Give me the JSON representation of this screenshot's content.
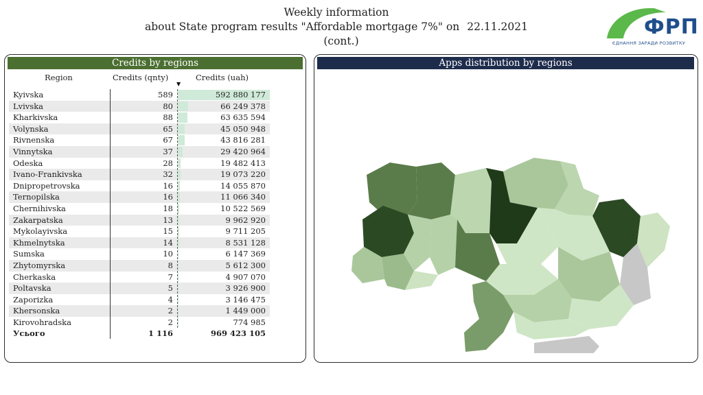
{
  "header": {
    "line1": "Weekly information",
    "line2": "about State program results \"Affordable mortgage 7%\" on",
    "date": "22.11.2021",
    "cont": "(cont.)"
  },
  "logo": {
    "text": "ФРП",
    "subtitle": "ЄДНАННЯ ЗАРАДИ РОЗВИТКУ"
  },
  "left": {
    "title": "Credits by regions",
    "columns": [
      "Region",
      "Credits (qnty)",
      "Credits (uah)"
    ],
    "rows": [
      {
        "region": "Kyivska",
        "qnty": "589",
        "uah": "592 880 177",
        "share": 1.0
      },
      {
        "region": "Lvivska",
        "qnty": "80",
        "uah": "66 249 378",
        "share": 0.112
      },
      {
        "region": "Kharkivska",
        "qnty": "88",
        "uah": "63 635 594",
        "share": 0.107
      },
      {
        "region": "Volynska",
        "qnty": "65",
        "uah": "45 050 948",
        "share": 0.076
      },
      {
        "region": "Rivnenska",
        "qnty": "67",
        "uah": "43 816 281",
        "share": 0.074
      },
      {
        "region": "Vinnytska",
        "qnty": "37",
        "uah": "29 420 964",
        "share": 0.05
      },
      {
        "region": "Odeska",
        "qnty": "28",
        "uah": "19 482 413",
        "share": 0.033
      },
      {
        "region": "Ivano-Frankivska",
        "qnty": "32",
        "uah": "19 073 220",
        "share": 0.032
      },
      {
        "region": "Dnipropetrovska",
        "qnty": "16",
        "uah": "14 055 870",
        "share": 0.024
      },
      {
        "region": "Ternopilska",
        "qnty": "16",
        "uah": "11 066 340",
        "share": 0.019
      },
      {
        "region": "Chernihivska",
        "qnty": "18",
        "uah": "10 522 569",
        "share": 0.018
      },
      {
        "region": "Zakarpatska",
        "qnty": "13",
        "uah": "9 962 920",
        "share": 0.017
      },
      {
        "region": "Mykolayivska",
        "qnty": "15",
        "uah": "9 711 205",
        "share": 0.016
      },
      {
        "region": "Khmelnytska",
        "qnty": "14",
        "uah": "8 531 128",
        "share": 0.014
      },
      {
        "region": "Sumska",
        "qnty": "10",
        "uah": "6 147 369",
        "share": 0.01
      },
      {
        "region": "Zhytomyrska",
        "qnty": "8",
        "uah": "5 612 300",
        "share": 0.009
      },
      {
        "region": "Cherkaska",
        "qnty": "7",
        "uah": "4 907 070",
        "share": 0.008
      },
      {
        "region": "Poltavska",
        "qnty": "5",
        "uah": "3 926 900",
        "share": 0.007
      },
      {
        "region": "Zaporizka",
        "qnty": "4",
        "uah": "3 146 475",
        "share": 0.005
      },
      {
        "region": "Khersonska",
        "qnty": "2",
        "uah": "1 449 000",
        "share": 0.002
      },
      {
        "region": "Kirovohradska",
        "qnty": "2",
        "uah": "774 985",
        "share": 0.001
      }
    ],
    "total": {
      "region": "Усього",
      "qnty": "1 116",
      "uah": "969 423 105"
    },
    "bar_color": "#cfead8"
  },
  "right": {
    "title": "Apps distribution by regions"
  },
  "colors": {
    "green_dark": "#4b6f31",
    "navy": "#1e2c4c",
    "logo_blue": "#1f4e8c",
    "logo_green": "#5bb84a"
  }
}
